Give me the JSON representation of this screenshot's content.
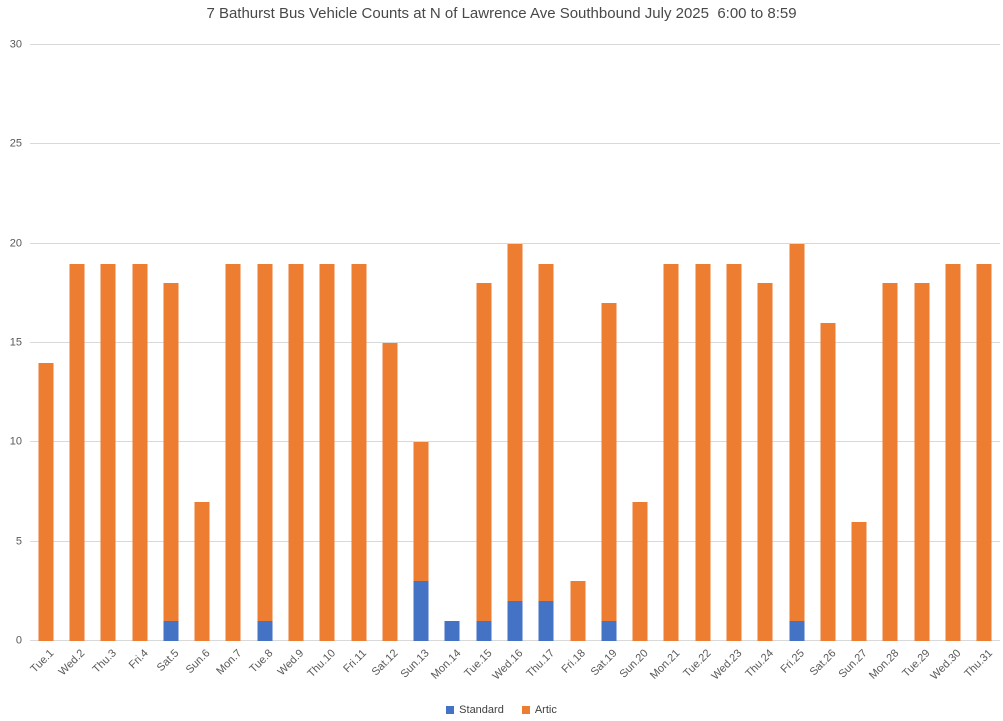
{
  "chart_data": {
    "type": "bar",
    "stacked": true,
    "title": "7 Bathurst Bus Vehicle Counts at N of Lawrence Ave Southbound July 2025  6:00 to 8:59",
    "categories": [
      "Tue.1",
      "Wed.2",
      "Thu.3",
      "Fri.4",
      "Sat.5",
      "Sun.6",
      "Mon.7",
      "Tue.8",
      "Wed.9",
      "Thu.10",
      "Fri.11",
      "Sat.12",
      "Sun.13",
      "Mon.14",
      "Tue.15",
      "Wed.16",
      "Thu.17",
      "Fri.18",
      "Sat.19",
      "Sun.20",
      "Mon.21",
      "Tue.22",
      "Wed.23",
      "Thu.24",
      "Fri.25",
      "Sat.26",
      "Sun.27",
      "Mon.28",
      "Tue.29",
      "Wed.30",
      "Thu.31"
    ],
    "series": [
      {
        "name": "Standard",
        "color": "#4472C4",
        "values": [
          0,
          0,
          0,
          0,
          1,
          0,
          0,
          1,
          0,
          0,
          0,
          0,
          3,
          1,
          1,
          2,
          2,
          0,
          1,
          0,
          0,
          0,
          0,
          0,
          1,
          0,
          0,
          0,
          0,
          0,
          0
        ]
      },
      {
        "name": "Artic",
        "color": "#ED7D31",
        "values": [
          14,
          19,
          19,
          19,
          17,
          7,
          19,
          18,
          19,
          19,
          19,
          15,
          7,
          0,
          17,
          18,
          17,
          3,
          16,
          7,
          19,
          19,
          19,
          18,
          19,
          16,
          6,
          18,
          18,
          19,
          19
        ]
      }
    ],
    "totals": [
      14,
      19,
      19,
      19,
      18,
      7,
      19,
      19,
      19,
      19,
      19,
      15,
      10,
      1,
      18,
      20,
      19,
      3,
      17,
      7,
      19,
      19,
      19,
      18,
      20,
      16,
      6,
      18,
      18,
      19,
      19
    ],
    "xlabel": "",
    "ylabel": "",
    "ylim": [
      0,
      30
    ],
    "yticks": [
      0,
      5,
      10,
      15,
      20,
      25,
      30
    ],
    "grid": true,
    "legend_position": "bottom"
  },
  "colors": {
    "background": "#ffffff",
    "gridline": "#d9d9d9",
    "axis_text": "#595959",
    "title_text": "#484848",
    "standard_blue": "#4472C4",
    "artic_orange": "#ED7D31"
  }
}
